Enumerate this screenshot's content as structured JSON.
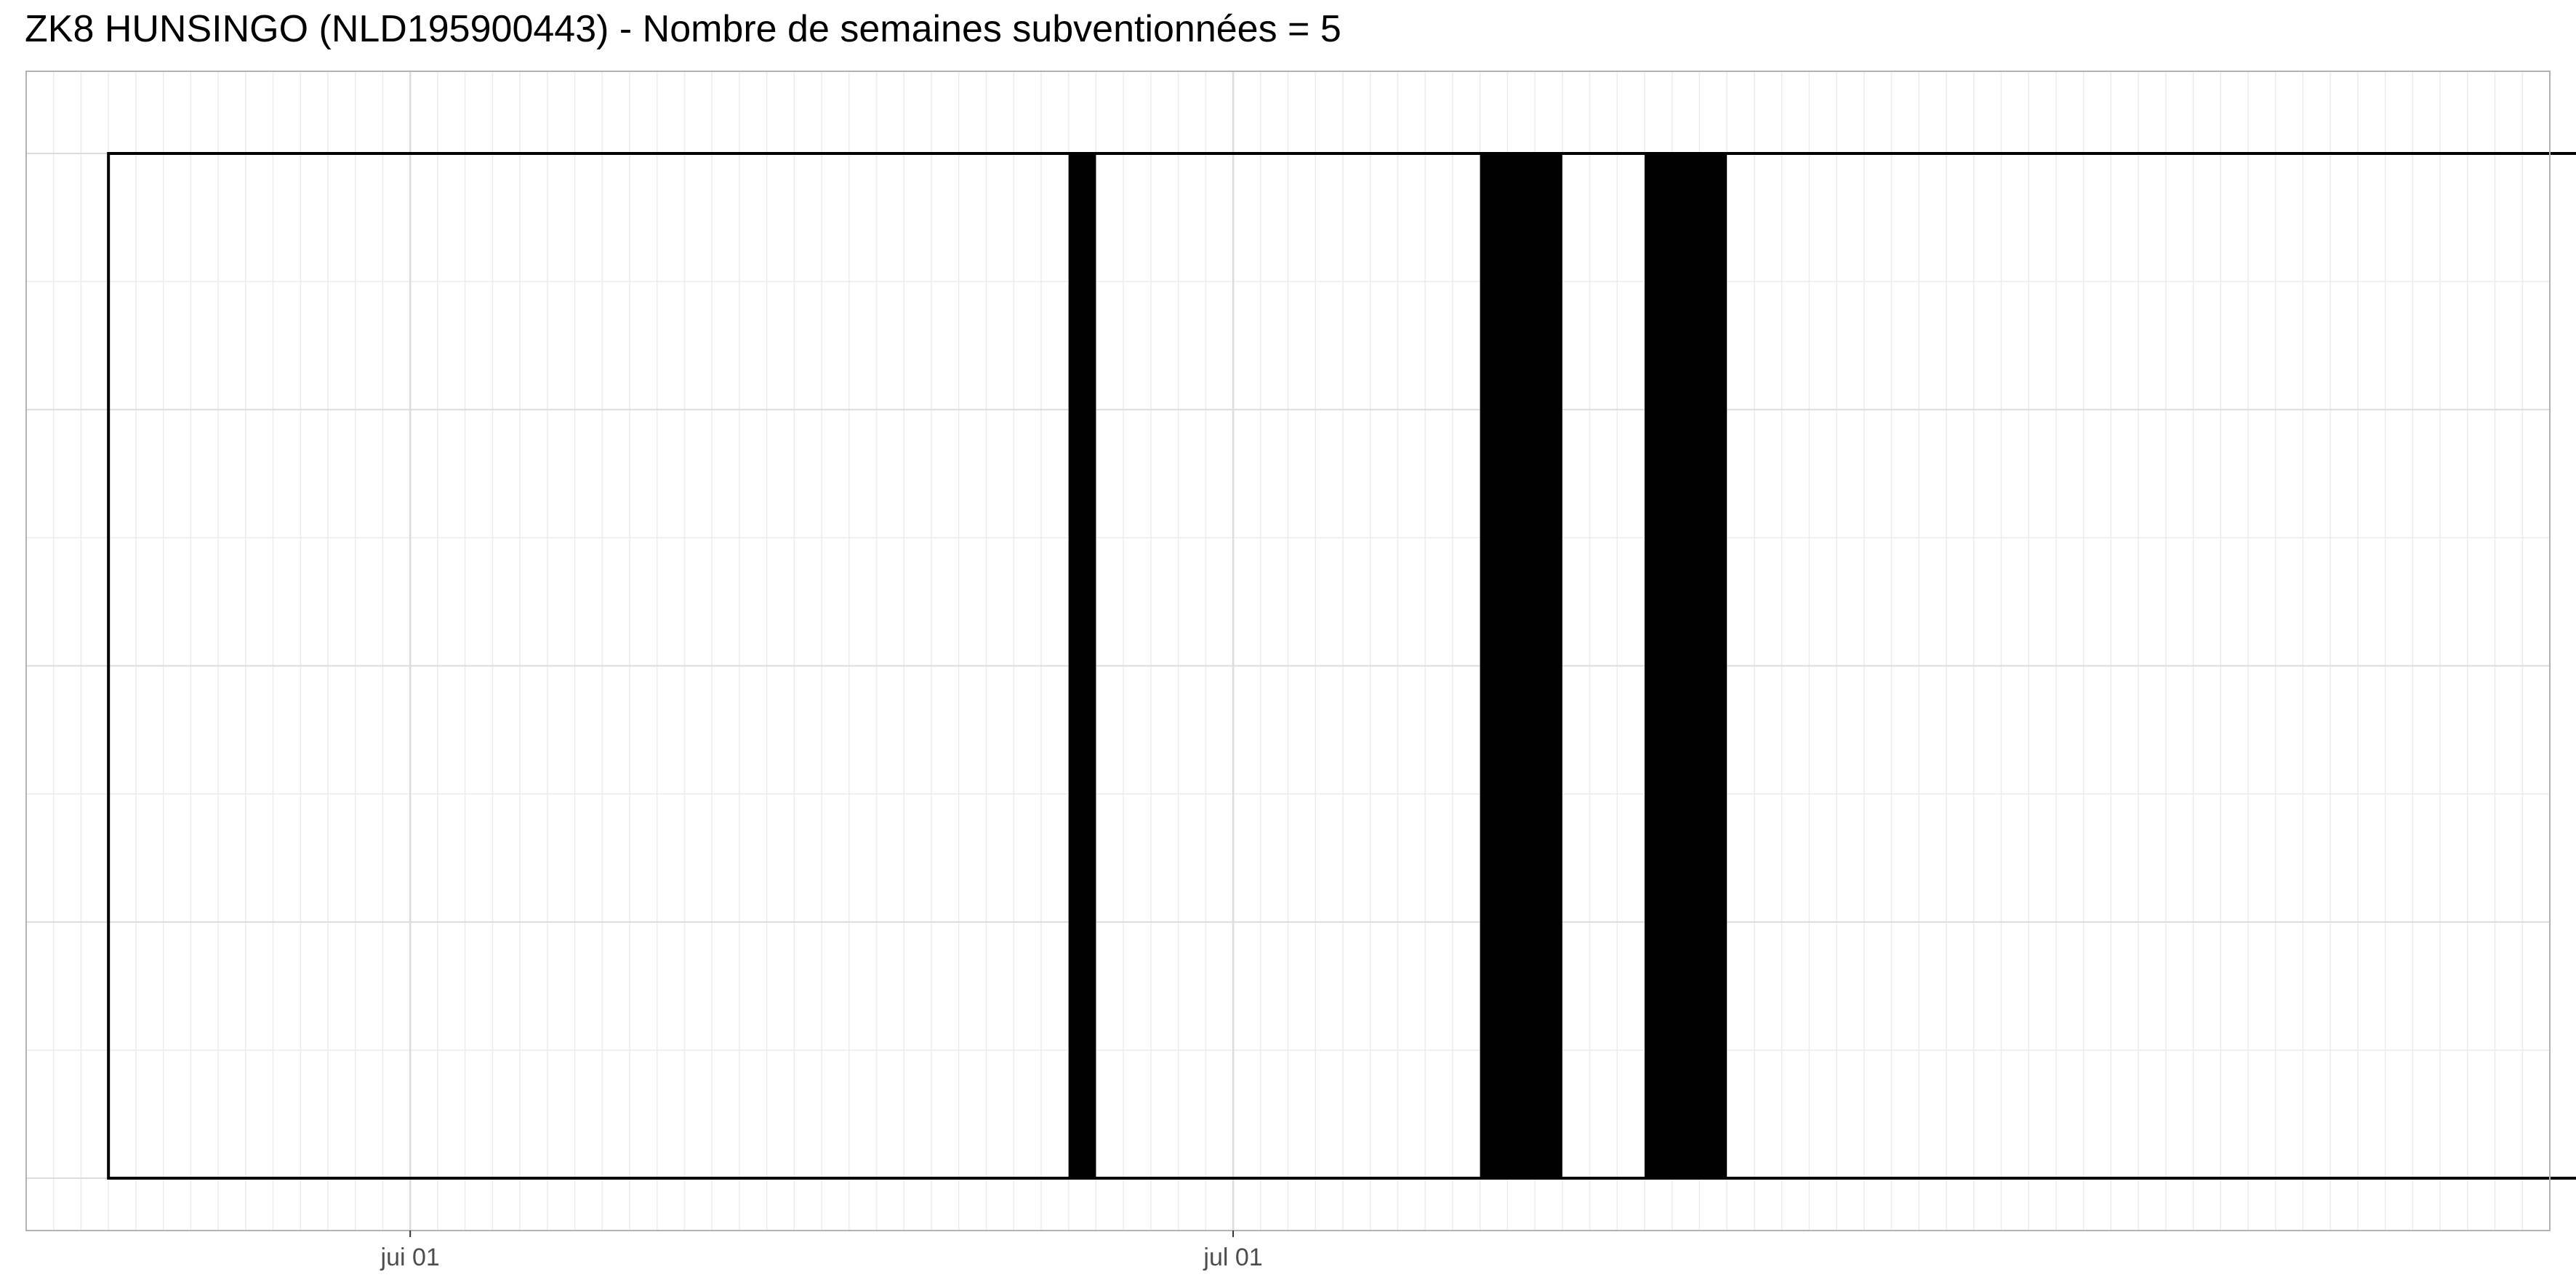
{
  "title": "ZK8 HUNSINGO (NLD195900443) - Nombre de semaines subventionnées = 5",
  "chart_data": {
    "type": "timeline",
    "title": "ZK8 HUNSINGO (NLD195900443) - Nombre de semaines subventionnées = 5",
    "xlabel": "",
    "ylabel": "",
    "x_range": [
      "2023-05-18",
      "2023-08-18"
    ],
    "x_ticks": [
      {
        "date": "2023-06-01",
        "label": "jui 01"
      },
      {
        "date": "2023-07-01",
        "label": "jul 01"
      }
    ],
    "timeline_span": {
      "start": "2023-05-21",
      "end": "2023-08-22"
    },
    "series": [
      {
        "values": [
          {
            "start": "2023-06-25",
            "end": "2023-06-26"
          },
          {
            "start": "2023-07-10",
            "end": "2023-07-13"
          },
          {
            "start": "2023-07-16",
            "end": "2023-07-19"
          }
        ]
      }
    ],
    "grid": true,
    "colors": {
      "bar": "#000000",
      "outline": "#000000",
      "grid_major": "#dcdcdc",
      "grid_minor": "#ececec",
      "panel_border": "#b3b3b3"
    }
  }
}
